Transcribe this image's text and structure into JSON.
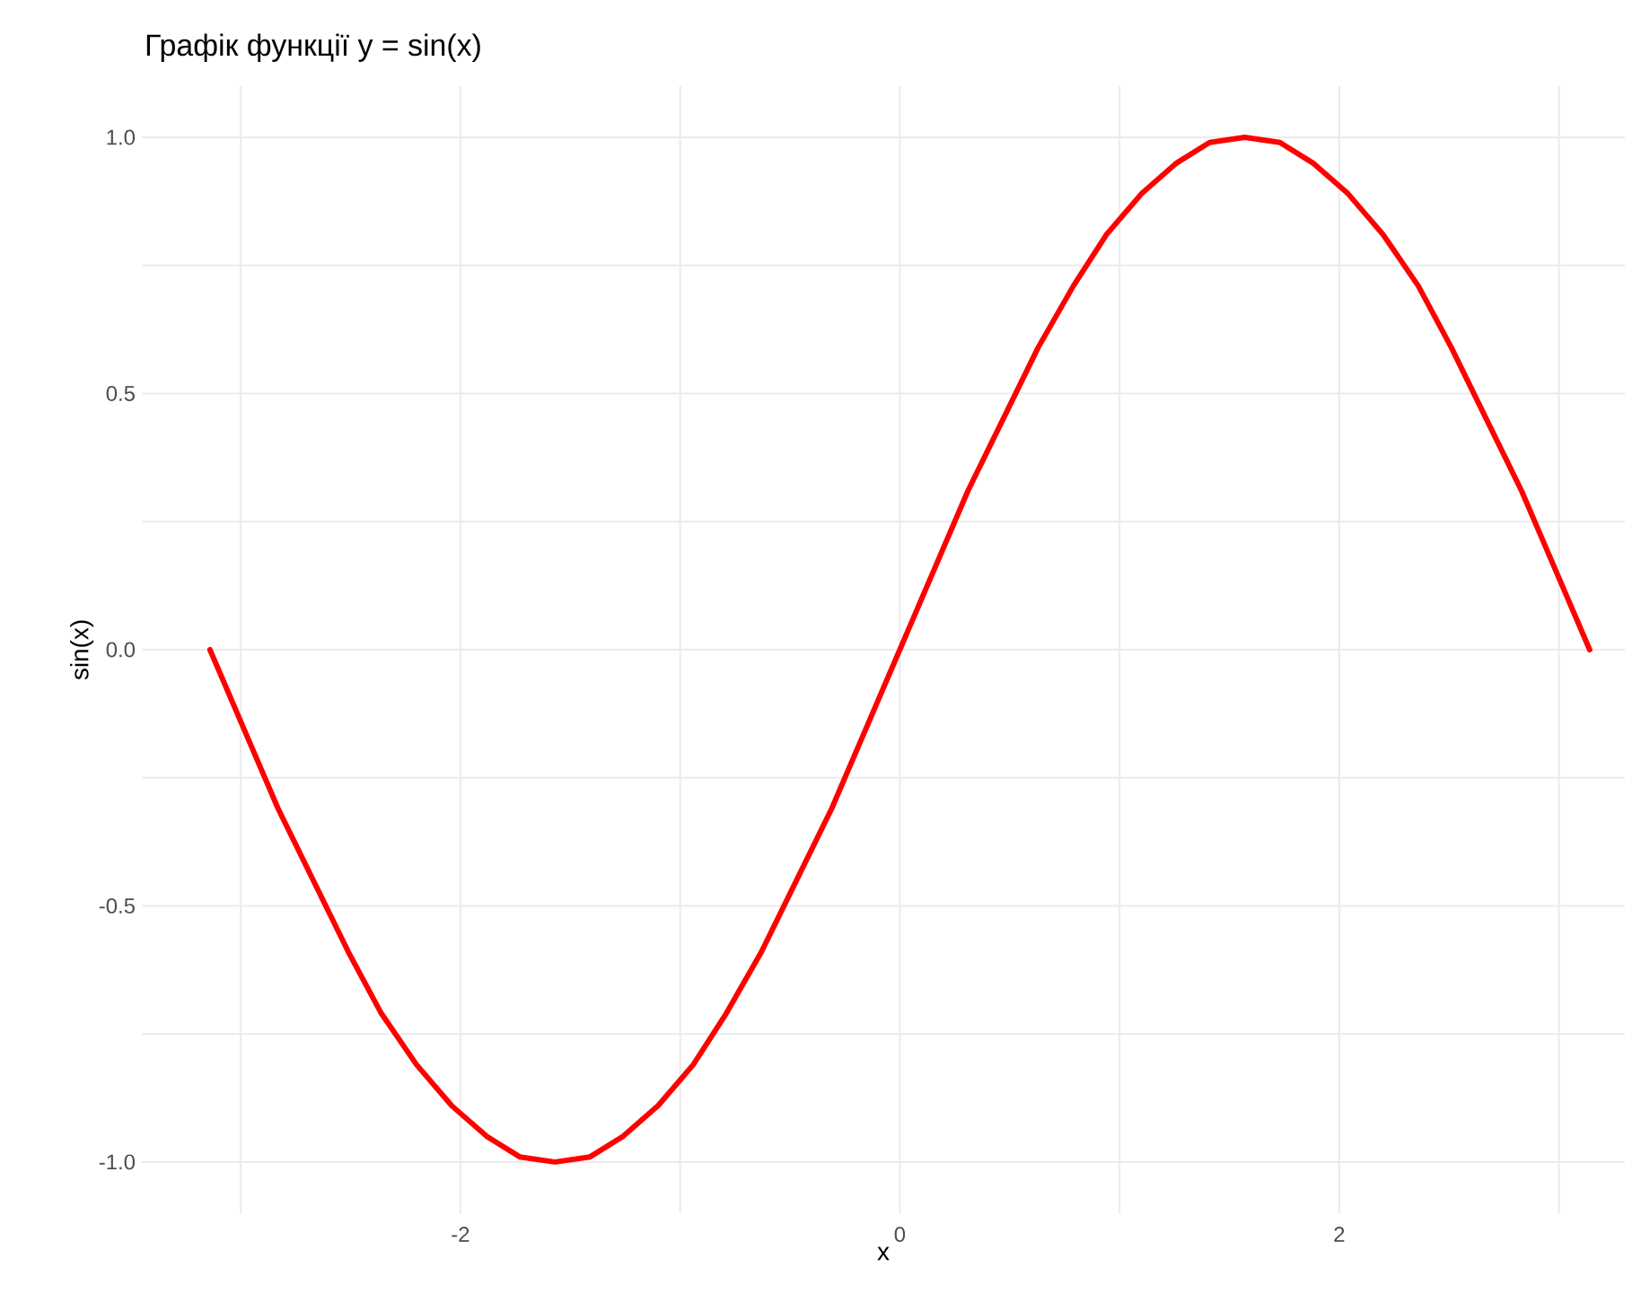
{
  "chart_data": {
    "type": "line",
    "title": "Графік функції y = sin(x)",
    "xlabel": "x",
    "ylabel": "sin(x)",
    "x": [
      -3.14,
      -2.98,
      -2.83,
      -2.67,
      -2.51,
      -2.36,
      -2.2,
      -2.04,
      -1.88,
      -1.73,
      -1.57,
      -1.41,
      -1.26,
      -1.1,
      -0.94,
      -0.79,
      -0.63,
      -0.47,
      -0.31,
      -0.16,
      0,
      0.16,
      0.31,
      0.47,
      0.63,
      0.79,
      0.94,
      1.1,
      1.26,
      1.41,
      1.57,
      1.73,
      1.88,
      2.04,
      2.2,
      2.36,
      2.51,
      2.67,
      2.83,
      2.98,
      3.14
    ],
    "values": [
      0,
      -0.16,
      -0.31,
      -0.45,
      -0.59,
      -0.71,
      -0.81,
      -0.89,
      -0.95,
      -0.99,
      -1,
      -0.99,
      -0.95,
      -0.89,
      -0.81,
      -0.71,
      -0.59,
      -0.45,
      -0.31,
      -0.16,
      0,
      0.16,
      0.31,
      0.45,
      0.59,
      0.71,
      0.81,
      0.89,
      0.95,
      0.99,
      1,
      0.99,
      0.95,
      0.89,
      0.81,
      0.71,
      0.59,
      0.45,
      0.31,
      0.16,
      0
    ],
    "color": "#ff0000",
    "marker": "none",
    "line_style": "solid",
    "grid": true,
    "xlim": [
      -3.45,
      3.3
    ],
    "ylim": [
      -1.1,
      1.1
    ],
    "xticks": [
      {
        "value": -3,
        "label": null
      },
      {
        "value": -2,
        "label": "-2"
      },
      {
        "value": -1,
        "label": null
      },
      {
        "value": 0,
        "label": "0"
      },
      {
        "value": 1,
        "label": null
      },
      {
        "value": 2,
        "label": "2"
      },
      {
        "value": 3,
        "label": null
      }
    ],
    "yticks": [
      {
        "value": -1,
        "label": "-1.0"
      },
      {
        "value": -0.75,
        "label": null
      },
      {
        "value": -0.5,
        "label": "-0.5"
      },
      {
        "value": -0.25,
        "label": null
      },
      {
        "value": 0,
        "label": "0.0"
      },
      {
        "value": 0.25,
        "label": null
      },
      {
        "value": 0.5,
        "label": "0.5"
      },
      {
        "value": 0.75,
        "label": null
      },
      {
        "value": 1,
        "label": "1.0"
      }
    ]
  }
}
